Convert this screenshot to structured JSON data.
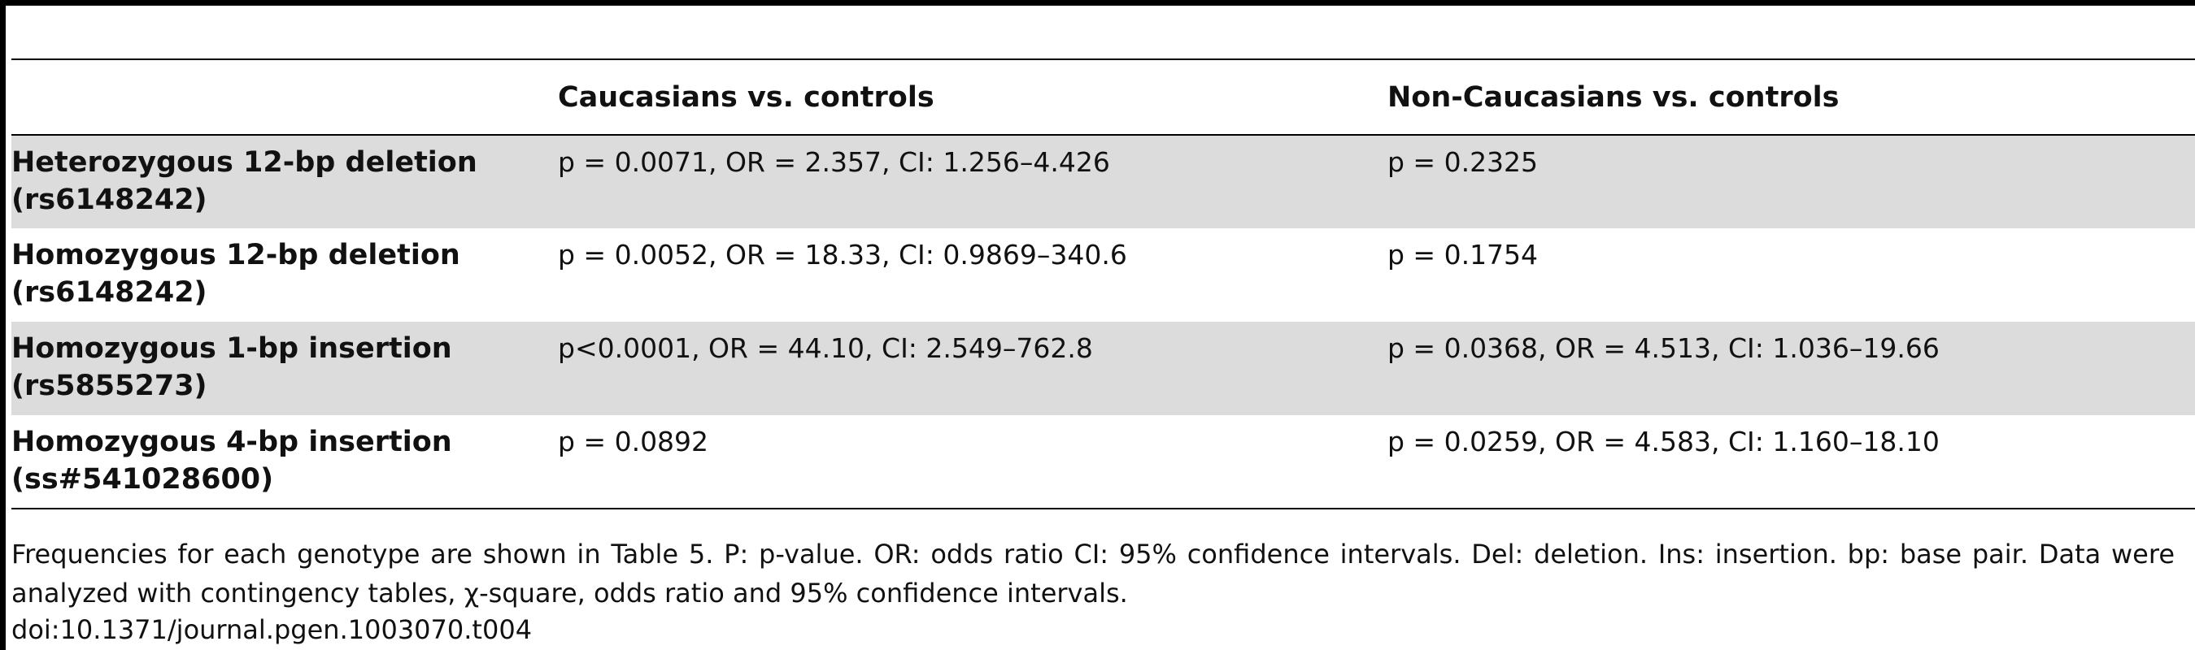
{
  "table": {
    "columns": [
      "",
      "Caucasians vs. controls",
      "Non-Caucasians vs. controls"
    ],
    "rows": [
      {
        "label_line1": "Heterozygous 12-bp deletion",
        "label_line2": "(rs6148242)",
        "caucasians": "p = 0.0071, OR = 2.357, CI: 1.256–4.426",
        "non_caucasians": "p = 0.2325",
        "shaded": true
      },
      {
        "label_line1": "Homozygous 12-bp deletion",
        "label_line2": "(rs6148242)",
        "caucasians": "p = 0.0052, OR = 18.33, CI: 0.9869–340.6",
        "non_caucasians": "p = 0.1754",
        "shaded": false
      },
      {
        "label_line1": "Homozygous 1-bp insertion",
        "label_line2": "(rs5855273)",
        "caucasians": "p<0.0001, OR = 44.10, CI: 2.549–762.8",
        "non_caucasians": "p = 0.0368, OR = 4.513, CI: 1.036–19.66",
        "shaded": true
      },
      {
        "label_line1": "Homozygous 4-bp insertion",
        "label_line2": "(ss#541028600)",
        "caucasians": "p = 0.0892",
        "non_caucasians": "p = 0.0259, OR = 4.583, CI: 1.160–18.10",
        "shaded": false
      }
    ]
  },
  "footnote": "Frequencies for each genotype are shown in Table 5. P: p-value. OR: odds ratio CI: 95% confidence intervals. Del: deletion. Ins: insertion. bp: base pair. Data were analyzed with contingency tables, χ-square, odds ratio and 95% confidence intervals.",
  "doi": "doi:10.1371/journal.pgen.1003070.t004"
}
